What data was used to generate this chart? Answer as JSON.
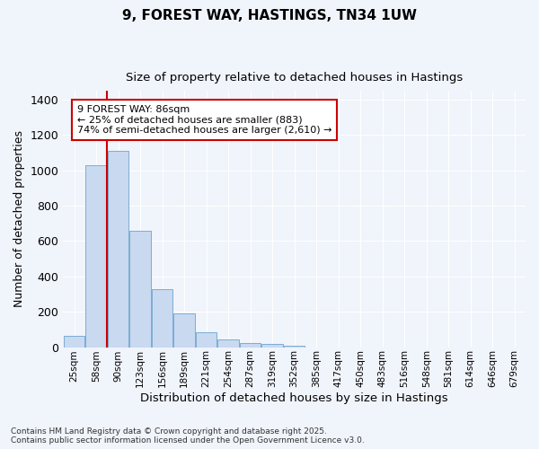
{
  "title1": "9, FOREST WAY, HASTINGS, TN34 1UW",
  "title2": "Size of property relative to detached houses in Hastings",
  "xlabel": "Distribution of detached houses by size in Hastings",
  "ylabel": "Number of detached properties",
  "categories": [
    "25sqm",
    "58sqm",
    "90sqm",
    "123sqm",
    "156sqm",
    "189sqm",
    "221sqm",
    "254sqm",
    "287sqm",
    "319sqm",
    "352sqm",
    "385sqm",
    "417sqm",
    "450sqm",
    "483sqm",
    "516sqm",
    "548sqm",
    "581sqm",
    "614sqm",
    "646sqm",
    "679sqm"
  ],
  "values": [
    65,
    1030,
    1110,
    660,
    330,
    190,
    85,
    45,
    25,
    20,
    10,
    0,
    0,
    0,
    0,
    0,
    0,
    0,
    0,
    0,
    0
  ],
  "bar_color": "#c9d9f0",
  "bar_edge_color": "#7aadd4",
  "background_color": "#f0f4fb",
  "grid_color": "#ffffff",
  "vline_color": "#cc0000",
  "vline_pos": 1.5,
  "annotation_text": "9 FOREST WAY: 86sqm\n← 25% of detached houses are smaller (883)\n74% of semi-detached houses are larger (2,610) →",
  "annotation_box_color": "#ffffff",
  "annotation_box_edge": "#cc0000",
  "ylim": [
    0,
    1450
  ],
  "yticks": [
    0,
    200,
    400,
    600,
    800,
    1000,
    1200,
    1400
  ],
  "footer": "Contains HM Land Registry data © Crown copyright and database right 2025.\nContains public sector information licensed under the Open Government Licence v3.0."
}
